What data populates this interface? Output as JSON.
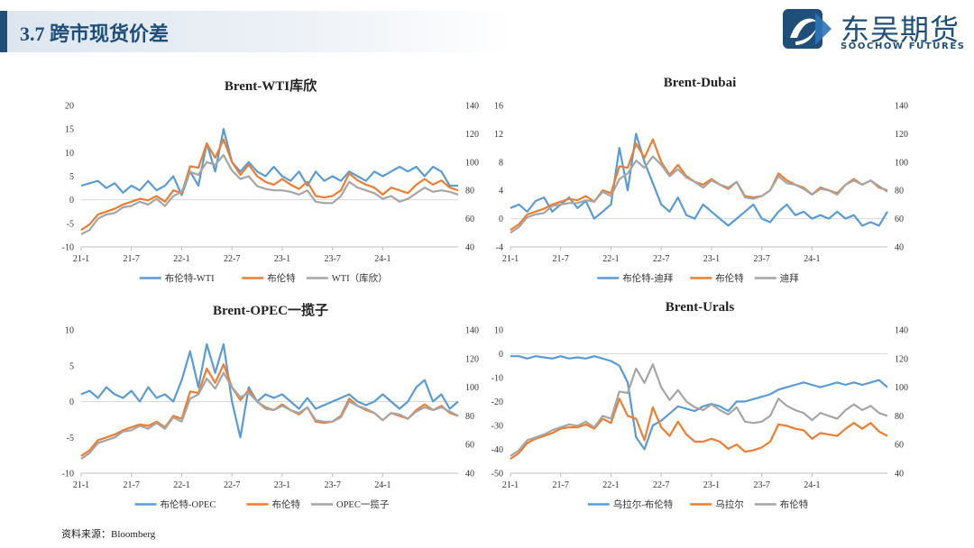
{
  "header": {
    "title": "3.7 跨市现货价差",
    "logo_name": "东吴期货",
    "logo_sub": "SOOCHOW FUTURES"
  },
  "footer": {
    "source": "资料来源：Bloomberg"
  },
  "colors": {
    "spread": "#5b9bd5",
    "brent": "#ed7d31",
    "other": "#a5a5a5",
    "brand": "#1f4e79"
  },
  "chart_data": [
    {
      "type": "line",
      "title": "Brent-WTI库欣",
      "x_ticks": [
        "21-1",
        "21-7",
        "22-1",
        "22-7",
        "23-1",
        "23-7",
        "24-1"
      ],
      "y_left": [
        -10,
        20
      ],
      "y_left_ticks": [
        -10,
        -5,
        0,
        5,
        10,
        15,
        20
      ],
      "y_right": [
        40,
        140
      ],
      "y_right_ticks": [
        40,
        60,
        80,
        100,
        120,
        140
      ],
      "months": 46,
      "series": [
        {
          "name": "布伦特-WTI",
          "axis": "left",
          "color": "#5b9bd5",
          "values": [
            3,
            3.5,
            4,
            2.5,
            3.5,
            1.5,
            3,
            2,
            4,
            2,
            3,
            5,
            1,
            6,
            3,
            12,
            6,
            15,
            8,
            6,
            8,
            6,
            5,
            7,
            5,
            4,
            6,
            3,
            6,
            4,
            5,
            4,
            6,
            5,
            4,
            6,
            5,
            6,
            7,
            6,
            7,
            5,
            7,
            6,
            3,
            3
          ]
        },
        {
          "name": "布伦特",
          "axis": "right",
          "color": "#ed7d31",
          "values": [
            52,
            56,
            63,
            65,
            67,
            70,
            72,
            74,
            73,
            76,
            72,
            80,
            78,
            97,
            96,
            113,
            103,
            116,
            100,
            91,
            98,
            90,
            86,
            84,
            88,
            84,
            81,
            86,
            76,
            75,
            76,
            80,
            92,
            87,
            84,
            82,
            77,
            82,
            80,
            78,
            84,
            88,
            84,
            87,
            82,
            80
          ]
        },
        {
          "name": "WTI（库欣）",
          "axis": "right",
          "color": "#a5a5a5",
          "values": [
            49,
            52,
            60,
            63,
            64,
            68,
            69,
            72,
            70,
            74,
            69,
            76,
            79,
            93,
            91,
            100,
            98,
            105,
            94,
            88,
            90,
            83,
            81,
            80,
            80,
            79,
            77,
            80,
            72,
            71,
            71,
            76,
            86,
            82,
            80,
            78,
            74,
            76,
            72,
            74,
            78,
            82,
            79,
            80,
            79,
            77
          ]
        }
      ]
    },
    {
      "type": "line",
      "title": "Brent-Dubai",
      "x_ticks": [
        "21-1",
        "21-7",
        "22-1",
        "22-7",
        "23-1",
        "23-7",
        "24-1"
      ],
      "y_left": [
        -4,
        16
      ],
      "y_left_ticks": [
        -4,
        0,
        4,
        8,
        12,
        16
      ],
      "y_right": [
        40,
        140
      ],
      "y_right_ticks": [
        40,
        60,
        80,
        100,
        120,
        140
      ],
      "months": 46,
      "series": [
        {
          "name": "布伦特-迪拜",
          "axis": "left",
          "color": "#5b9bd5",
          "values": [
            1.5,
            2,
            1,
            2.5,
            3,
            1,
            2,
            3,
            1.5,
            2.5,
            0,
            1,
            2,
            10,
            4,
            12,
            8,
            5,
            2,
            1,
            3,
            0.5,
            0,
            2,
            1,
            0,
            -1,
            0,
            1,
            2,
            0,
            -0.5,
            1,
            2,
            0.5,
            1,
            0,
            0.5,
            0,
            1,
            0,
            0.5,
            -1,
            -0.5,
            -1,
            1
          ]
        },
        {
          "name": "布伦特",
          "axis": "right",
          "color": "#ed7d31",
          "values": [
            52,
            56,
            63,
            65,
            67,
            70,
            72,
            74,
            73,
            76,
            72,
            80,
            78,
            97,
            96,
            113,
            103,
            116,
            100,
            91,
            98,
            90,
            86,
            84,
            88,
            84,
            81,
            86,
            76,
            75,
            76,
            80,
            92,
            87,
            84,
            82,
            77,
            82,
            80,
            78,
            84,
            88,
            84,
            87,
            82,
            80
          ]
        },
        {
          "name": "迪拜",
          "axis": "right",
          "color": "#a5a5a5",
          "values": [
            50,
            54,
            61,
            63,
            64,
            69,
            70,
            71,
            71,
            73,
            72,
            79,
            76,
            88,
            92,
            101,
            96,
            104,
            98,
            90,
            95,
            89,
            86,
            82,
            87,
            84,
            82,
            86,
            75,
            74,
            76,
            80,
            90,
            85,
            84,
            81,
            77,
            81,
            80,
            77,
            84,
            87,
            84,
            87,
            83,
            79
          ]
        }
      ]
    },
    {
      "type": "line",
      "title": "Brent-OPEC一揽子",
      "x_ticks": [
        "21-1",
        "21-7",
        "22-1",
        "22-7",
        "23-1",
        "23-7",
        "24-1"
      ],
      "y_left": [
        -10,
        10
      ],
      "y_left_ticks": [
        -10,
        -5,
        0,
        5,
        10
      ],
      "y_right": [
        40,
        140
      ],
      "y_right_ticks": [
        40,
        60,
        80,
        100,
        120,
        140
      ],
      "months": 46,
      "series": [
        {
          "name": "布伦特-OPEC",
          "axis": "left",
          "color": "#5b9bd5",
          "values": [
            1,
            1.5,
            0.5,
            2,
            1,
            0.5,
            1.5,
            0,
            2,
            0.5,
            1,
            0,
            3,
            7,
            2,
            8,
            4,
            8,
            0,
            -5,
            2,
            0,
            1,
            0.5,
            1,
            0,
            -1,
            0.5,
            -1,
            -0.5,
            0,
            0.5,
            1,
            0,
            -0.5,
            0,
            1,
            0,
            -1,
            0,
            2,
            3,
            0,
            1,
            -1,
            0
          ]
        },
        {
          "name": "布伦特",
          "axis": "right",
          "color": "#ed7d31",
          "values": [
            52,
            56,
            63,
            65,
            67,
            70,
            72,
            74,
            73,
            76,
            72,
            80,
            78,
            97,
            96,
            113,
            103,
            116,
            100,
            91,
            98,
            90,
            86,
            84,
            88,
            84,
            81,
            86,
            76,
            75,
            76,
            80,
            92,
            87,
            84,
            82,
            77,
            82,
            80,
            78,
            84,
            88,
            84,
            87,
            82,
            80
          ]
        },
        {
          "name": "OPEC一揽子",
          "axis": "right",
          "color": "#a5a5a5",
          "values": [
            50,
            54,
            61,
            63,
            65,
            69,
            70,
            73,
            71,
            75,
            71,
            79,
            76,
            92,
            95,
            106,
            99,
            110,
            100,
            93,
            96,
            90,
            85,
            84,
            87,
            84,
            82,
            86,
            77,
            76,
            76,
            79,
            90,
            87,
            85,
            82,
            77,
            82,
            81,
            78,
            83,
            86,
            84,
            86,
            83,
            80
          ]
        }
      ]
    },
    {
      "type": "line",
      "title": "Brent-Urals",
      "x_ticks": [
        "21-1",
        "21-7",
        "22-1",
        "22-7",
        "23-1",
        "23-7",
        "24-1"
      ],
      "y_left": [
        -50,
        10
      ],
      "y_left_ticks": [
        -50,
        -40,
        -30,
        -20,
        -10,
        0,
        10
      ],
      "y_right": [
        40,
        140
      ],
      "y_right_ticks": [
        40,
        60,
        80,
        100,
        120,
        140
      ],
      "months": 46,
      "series": [
        {
          "name": "乌拉尔-布伦特",
          "axis": "left",
          "color": "#5b9bd5",
          "values": [
            -1,
            -1,
            -2,
            -1,
            -1.5,
            -2,
            -1,
            -2,
            -1.5,
            -2,
            -1,
            -2,
            -3,
            -5,
            -12,
            -35,
            -40,
            -30,
            -28,
            -25,
            -22,
            -23,
            -24,
            -22,
            -21,
            -22,
            -24,
            -20,
            -20,
            -19,
            -18,
            -17,
            -15,
            -14,
            -13,
            -12,
            -13,
            -14,
            -13,
            -12,
            -13,
            -12,
            -13,
            -12,
            -11,
            -14
          ]
        },
        {
          "name": "乌拉尔",
          "axis": "right",
          "color": "#ed7d31",
          "values": [
            50,
            54,
            61,
            64,
            66,
            68,
            71,
            72,
            72,
            74,
            71,
            78,
            75,
            92,
            80,
            78,
            63,
            86,
            72,
            66,
            76,
            67,
            62,
            62,
            64,
            62,
            57,
            60,
            55,
            56,
            58,
            62,
            74,
            73,
            71,
            70,
            64,
            68,
            67,
            66,
            71,
            75,
            71,
            75,
            69,
            66
          ]
        },
        {
          "name": "布伦特",
          "axis": "right",
          "color": "#a5a5a5",
          "values": [
            52,
            56,
            63,
            65,
            67,
            70,
            72,
            74,
            73,
            76,
            72,
            80,
            78,
            97,
            96,
            113,
            103,
            116,
            100,
            91,
            98,
            90,
            86,
            84,
            88,
            84,
            81,
            86,
            76,
            75,
            76,
            80,
            92,
            87,
            84,
            82,
            77,
            82,
            80,
            78,
            84,
            88,
            84,
            87,
            82,
            80
          ]
        }
      ]
    }
  ]
}
